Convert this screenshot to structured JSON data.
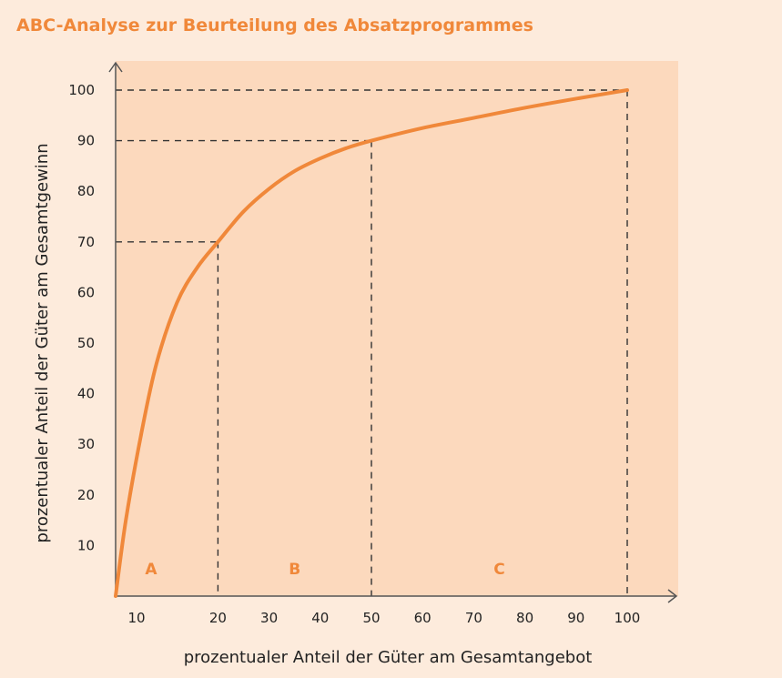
{
  "chart_data": {
    "type": "line",
    "title": "ABC-Analyse zur Beurteilung des Absatzprogrammes",
    "xlabel": "prozentualer Anteil der Güter am Gesamtangebot",
    "ylabel": "prozentualer Anteil der Güter am Gesamtgewinn",
    "xlim": [
      0,
      100
    ],
    "ylim": [
      0,
      100
    ],
    "x_ticks": [
      "10",
      "20",
      "30",
      "40",
      "50",
      "60",
      "70",
      "80",
      "90",
      "100"
    ],
    "y_ticks": [
      "10",
      "20",
      "30",
      "40",
      "50",
      "60",
      "70",
      "80",
      "90",
      "100"
    ],
    "series": [
      {
        "x": [
          0,
          2,
          5,
          8,
          12,
          16,
          20,
          25,
          30,
          35,
          40,
          45,
          50,
          60,
          70,
          80,
          90,
          100
        ],
        "y": [
          0,
          15,
          32,
          46,
          58,
          65,
          70,
          76,
          80.5,
          84,
          86.5,
          88.5,
          90,
          92.5,
          94.5,
          96.5,
          98.3,
          100
        ]
      }
    ],
    "reference_points": [
      {
        "x": 20,
        "y": 70
      },
      {
        "x": 50,
        "y": 90
      },
      {
        "x": 100,
        "y": 100
      }
    ],
    "zones": [
      {
        "label": "A",
        "from": 0,
        "to": 20
      },
      {
        "label": "B",
        "from": 20,
        "to": 50
      },
      {
        "label": "C",
        "from": 50,
        "to": 100
      }
    ],
    "grid": false,
    "colors": {
      "background": "#fdebdc",
      "plot_area": "#fcd9bd",
      "curve": "#f0883a",
      "title": "#f0883a",
      "zone_label": "#f0883a",
      "axis": "#555555",
      "dashed": "#333333",
      "text": "#222222"
    }
  }
}
